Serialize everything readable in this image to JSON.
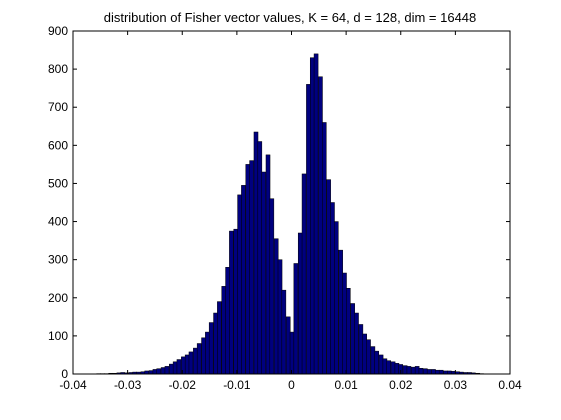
{
  "chart_data": {
    "type": "bar",
    "title": "distribution of Fisher vector values, K = 64, d = 128, dim = 16448",
    "xlabel": "",
    "ylabel": "",
    "xlim": [
      -0.04,
      0.04
    ],
    "ylim": [
      0,
      900
    ],
    "xticks": [
      -0.04,
      -0.03,
      -0.02,
      -0.01,
      0,
      0.01,
      0.02,
      0.03,
      0.04
    ],
    "yticks": [
      0,
      100,
      200,
      300,
      400,
      500,
      600,
      700,
      800,
      900
    ],
    "xtick_labels": [
      "-0.04",
      "-0.03",
      "-0.02",
      "-0.01",
      "0",
      "0.01",
      "0.02",
      "0.03",
      "0.04"
    ],
    "ytick_labels": [
      "0",
      "100",
      "200",
      "300",
      "400",
      "500",
      "600",
      "700",
      "800",
      "900"
    ],
    "grid": false,
    "bar_color": "#00007f",
    "edge_color": "#000000",
    "bin_width": 0.00074,
    "bin_centers": [
      -0.0353,
      -0.0346,
      -0.0339,
      -0.0331,
      -0.0324,
      -0.0316,
      -0.0309,
      -0.0302,
      -0.0294,
      -0.0287,
      -0.028,
      -0.0272,
      -0.0265,
      -0.0257,
      -0.025,
      -0.0243,
      -0.0235,
      -0.0228,
      -0.022,
      -0.0213,
      -0.0206,
      -0.0198,
      -0.0191,
      -0.0184,
      -0.0176,
      -0.0169,
      -0.0161,
      -0.0154,
      -0.0147,
      -0.0139,
      -0.0132,
      -0.0124,
      -0.0117,
      -0.011,
      -0.0102,
      -0.0095,
      -0.0088,
      -0.008,
      -0.0073,
      -0.0065,
      -0.0058,
      -0.0051,
      -0.0043,
      -0.0036,
      -0.0028,
      -0.0021,
      -0.0014,
      -0.0006,
      0.0001,
      0.0008,
      0.0016,
      0.0023,
      0.0031,
      0.0038,
      0.0045,
      0.0053,
      0.006,
      0.0068,
      0.0075,
      0.0082,
      0.009,
      0.0097,
      0.0104,
      0.0112,
      0.0119,
      0.0127,
      0.0134,
      0.0141,
      0.0149,
      0.0156,
      0.0164,
      0.0171,
      0.0178,
      0.0186,
      0.0193,
      0.02,
      0.0208,
      0.0215,
      0.0223,
      0.023,
      0.0237,
      0.0245,
      0.0252,
      0.026,
      0.0267,
      0.0274,
      0.0282,
      0.0289,
      0.0296,
      0.0304,
      0.0311,
      0.0319,
      0.0326,
      0.0333,
      0.0341,
      0.0348
    ],
    "values": [
      1,
      1,
      1,
      2,
      2,
      3,
      4,
      3,
      4,
      5,
      5,
      6,
      8,
      9,
      12,
      14,
      17,
      20,
      26,
      32,
      38,
      45,
      50,
      58,
      68,
      80,
      95,
      110,
      135,
      160,
      190,
      230,
      280,
      375,
      380,
      470,
      495,
      550,
      560,
      635,
      610,
      530,
      575,
      460,
      355,
      300,
      220,
      150,
      110,
      290,
      370,
      525,
      760,
      830,
      840,
      780,
      660,
      510,
      450,
      400,
      325,
      265,
      225,
      185,
      160,
      130,
      105,
      90,
      72,
      60,
      50,
      40,
      35,
      32,
      28,
      25,
      22,
      20,
      18,
      20,
      15,
      14,
      12,
      12,
      10,
      10,
      8,
      8,
      7,
      6,
      5,
      4,
      4,
      3,
      2,
      1
    ]
  }
}
